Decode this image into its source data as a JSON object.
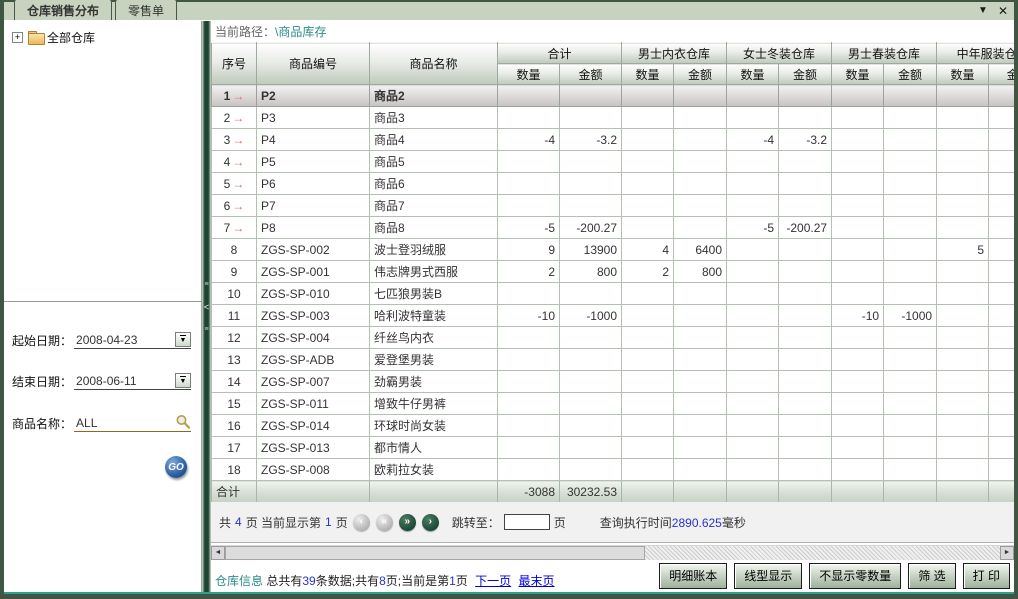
{
  "window": {
    "tabs": [
      {
        "label": "仓库销售分布",
        "active": true
      },
      {
        "label": "零售单",
        "active": false
      }
    ],
    "menu_icon": "▼",
    "close_icon": "✕"
  },
  "sidebar": {
    "tree": {
      "expand_icon": "+",
      "root_label": "全部仓库"
    },
    "form": {
      "start_date_label": "起始日期：",
      "start_date_value": "2008-04-23",
      "end_date_label": "结束日期：",
      "end_date_value": "2008-06-11",
      "product_name_label": "商品名称：",
      "product_name_value": "ALL",
      "go_label": "GO"
    },
    "splitter_icon": "<"
  },
  "main": {
    "breadcrumb": {
      "prefix": "当前路径：",
      "link": "\\商品库存"
    },
    "table": {
      "fixed_headers": [
        "序号",
        "商品编号",
        "商品名称"
      ],
      "groups": [
        "合计",
        "男士内衣仓库",
        "女士冬装仓库",
        "男士春装仓库",
        "中年服装仓库"
      ],
      "sub_headers": [
        "数量",
        "金额"
      ],
      "rows": [
        {
          "no": "1",
          "arrow": true,
          "selected": true,
          "code": "P2",
          "name": "商品2",
          "values": [
            "",
            "",
            "",
            "",
            "",
            "",
            "",
            "",
            "",
            ""
          ]
        },
        {
          "no": "2",
          "arrow": true,
          "selected": false,
          "code": "P3",
          "name": "商品3",
          "values": [
            "",
            "",
            "",
            "",
            "",
            "",
            "",
            "",
            "",
            ""
          ]
        },
        {
          "no": "3",
          "arrow": true,
          "selected": false,
          "code": "P4",
          "name": "商品4",
          "values": [
            "-4",
            "-3.2",
            "",
            "",
            "-4",
            "-3.2",
            "",
            "",
            "",
            ""
          ]
        },
        {
          "no": "4",
          "arrow": true,
          "selected": false,
          "code": "P5",
          "name": "商品5",
          "values": [
            "",
            "",
            "",
            "",
            "",
            "",
            "",
            "",
            "",
            ""
          ]
        },
        {
          "no": "5",
          "arrow": true,
          "selected": false,
          "code": "P6",
          "name": "商品6",
          "values": [
            "",
            "",
            "",
            "",
            "",
            "",
            "",
            "",
            "",
            ""
          ]
        },
        {
          "no": "6",
          "arrow": true,
          "selected": false,
          "code": "P7",
          "name": "商品7",
          "values": [
            "",
            "",
            "",
            "",
            "",
            "",
            "",
            "",
            "",
            ""
          ]
        },
        {
          "no": "7",
          "arrow": true,
          "selected": false,
          "code": "P8",
          "name": "商品8",
          "values": [
            "-5",
            "-200.27",
            "",
            "",
            "-5",
            "-200.27",
            "",
            "",
            "",
            ""
          ]
        },
        {
          "no": "8",
          "arrow": false,
          "selected": false,
          "code": "ZGS-SP-002",
          "name": "波士登羽绒服",
          "values": [
            "9",
            "13900",
            "4",
            "6400",
            "",
            "",
            "",
            "",
            "5",
            ""
          ]
        },
        {
          "no": "9",
          "arrow": false,
          "selected": false,
          "code": "ZGS-SP-001",
          "name": "伟志牌男式西服",
          "values": [
            "2",
            "800",
            "2",
            "800",
            "",
            "",
            "",
            "",
            "",
            ""
          ]
        },
        {
          "no": "10",
          "arrow": false,
          "selected": false,
          "code": "ZGS-SP-010",
          "name": "七匹狼男装B",
          "values": [
            "",
            "",
            "",
            "",
            "",
            "",
            "",
            "",
            "",
            ""
          ]
        },
        {
          "no": "11",
          "arrow": false,
          "selected": false,
          "code": "ZGS-SP-003",
          "name": "哈利波特童装",
          "values": [
            "-10",
            "-1000",
            "",
            "",
            "",
            "",
            "-10",
            "-1000",
            "",
            ""
          ]
        },
        {
          "no": "12",
          "arrow": false,
          "selected": false,
          "code": "ZGS-SP-004",
          "name": "纤丝鸟内衣",
          "values": [
            "",
            "",
            "",
            "",
            "",
            "",
            "",
            "",
            "",
            ""
          ]
        },
        {
          "no": "13",
          "arrow": false,
          "selected": false,
          "code": "ZGS-SP-ADB",
          "name": "爱登堡男装",
          "values": [
            "",
            "",
            "",
            "",
            "",
            "",
            "",
            "",
            "",
            ""
          ]
        },
        {
          "no": "14",
          "arrow": false,
          "selected": false,
          "code": "ZGS-SP-007",
          "name": "劲霸男装",
          "values": [
            "",
            "",
            "",
            "",
            "",
            "",
            "",
            "",
            "",
            ""
          ]
        },
        {
          "no": "15",
          "arrow": false,
          "selected": false,
          "code": "ZGS-SP-011",
          "name": "增致牛仔男裤",
          "values": [
            "",
            "",
            "",
            "",
            "",
            "",
            "",
            "",
            "",
            ""
          ]
        },
        {
          "no": "16",
          "arrow": false,
          "selected": false,
          "code": "ZGS-SP-014",
          "name": "环球时尚女装",
          "values": [
            "",
            "",
            "",
            "",
            "",
            "",
            "",
            "",
            "",
            ""
          ]
        },
        {
          "no": "17",
          "arrow": false,
          "selected": false,
          "code": "ZGS-SP-013",
          "name": "都市情人",
          "values": [
            "",
            "",
            "",
            "",
            "",
            "",
            "",
            "",
            "",
            ""
          ]
        },
        {
          "no": "18",
          "arrow": false,
          "selected": false,
          "code": "ZGS-SP-008",
          "name": "欧莉拉女装",
          "values": [
            "",
            "",
            "",
            "",
            "",
            "",
            "",
            "",
            "",
            ""
          ]
        }
      ],
      "totals": {
        "label": "合计",
        "values": [
          "-3088",
          "30232.53",
          "",
          "",
          "",
          "",
          "",
          "",
          "",
          ""
        ]
      }
    },
    "pagination": {
      "total_prefix": "共",
      "total_pages": "4",
      "mid": "页 当前显示第",
      "current_page": "1",
      "suffix": "页",
      "buttons": [
        {
          "glyph": "‹",
          "enabled": false,
          "name": "first-page-button"
        },
        {
          "glyph": "«",
          "enabled": false,
          "name": "prev-page-button"
        },
        {
          "glyph": "»",
          "enabled": true,
          "name": "next-page-button"
        },
        {
          "glyph": "›",
          "enabled": true,
          "name": "last-page-button"
        }
      ],
      "jump_label": "跳转至：",
      "jump_suffix": "页",
      "exec_prefix": "查询执行时间",
      "exec_time": "2890.625",
      "exec_suffix": "毫秒"
    },
    "hscroll": {
      "left_icon": "◄",
      "right_icon": "►"
    },
    "statusbar": {
      "source": "仓库信息",
      "seg1": "总共有",
      "count": "39",
      "seg2": "条数据;共有",
      "total_pages": "8",
      "seg3": "页;当前是第",
      "current": "1",
      "seg4": "页",
      "link_next": "下一页",
      "link_last": "最末页"
    },
    "action_buttons": [
      {
        "label": "明细账本",
        "name": "detail-ledger-button"
      },
      {
        "label": "线型显示",
        "name": "line-display-button"
      },
      {
        "label": "不显示零数量",
        "name": "hide-zero-quantity-button"
      },
      {
        "label": "筛 选",
        "name": "filter-button"
      },
      {
        "label": "打 印",
        "name": "print-button"
      }
    ]
  },
  "colors": {
    "frame_green": "#3F5642",
    "tab_strip": "#C7D3BF",
    "link_teal": "#2E8B8B",
    "link_blue": "#2633CC",
    "arrow_red": "#E06A6A",
    "pager_green": "#1E4D3A",
    "go_blue": "#2B5FA8"
  }
}
